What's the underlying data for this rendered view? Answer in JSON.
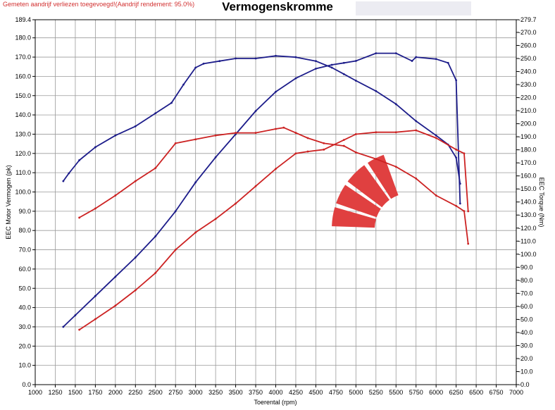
{
  "header": {
    "note": "Gemeten aandrijf verliezen toegevoegd!(Aandrijf rendement: 95.0%)",
    "title": "Vermogenskromme"
  },
  "colors": {
    "power_run": "#1c1c8a",
    "torque_run": "#cc2222",
    "logo": "#e04040"
  },
  "logo": {
    "icon": "tachometer-logo-icon"
  },
  "chart_data": {
    "type": "line",
    "title": "Vermogenskromme",
    "xlabel": "Toerental (rpm)",
    "ylabel": "EEC Motor Vermogen (pk)",
    "y2label": "EEC Torque (Nm)",
    "xlim": [
      1000,
      7000
    ],
    "ylim": [
      0,
      189.4
    ],
    "y2lim": [
      0,
      279.7
    ],
    "grid": true,
    "x_ticks": [
      "1000",
      "1250",
      "1500",
      "1750",
      "2000",
      "2250",
      "2500",
      "2750",
      "3000",
      "3250",
      "3500",
      "3750",
      "4000",
      "4250",
      "4500",
      "4750",
      "5000",
      "5250",
      "5500",
      "5750",
      "6000",
      "6250",
      "6500",
      "6750",
      "7000"
    ],
    "y_ticks": [
      "0.0",
      "10.0",
      "20.0",
      "30.0",
      "40.0",
      "50.0",
      "60.0",
      "70.0",
      "80.0",
      "90.0",
      "100.0",
      "110.0",
      "120.0",
      "130.0",
      "140.0",
      "150.0",
      "160.0",
      "170.0",
      "180.0",
      "189.4"
    ],
    "y2_ticks": [
      "0.0",
      "10.0",
      "20.0",
      "30.0",
      "40.0",
      "50.0",
      "60.0",
      "70.0",
      "80.0",
      "90.0",
      "100.0",
      "110.0",
      "120.0",
      "130.0",
      "140.0",
      "150.0",
      "160.0",
      "170.0",
      "180.0",
      "190.0",
      "200.0",
      "210.0",
      "220.0",
      "230.0",
      "240.0",
      "250.0",
      "260.0",
      "270.0",
      "279.7"
    ],
    "series": [
      {
        "axis": "right",
        "color": "#1c1c8a",
        "x": [
          1350,
          1420,
          1550,
          1750,
          2000,
          2250,
          2500,
          2700,
          2850,
          3000,
          3100,
          3300,
          3500,
          3750,
          4000,
          4250,
          4500,
          4700,
          4850,
          5000,
          5250,
          5500,
          5750,
          6000,
          6150,
          6250,
          6300
        ],
        "y": [
          156,
          162,
          172,
          182,
          191,
          198,
          208,
          216,
          230,
          243,
          246,
          248,
          250,
          250,
          252,
          251,
          248,
          243,
          238,
          233,
          225,
          215,
          202,
          191,
          184,
          174,
          154
        ]
      },
      {
        "axis": "left",
        "color": "#1c1c8a",
        "x": [
          1350,
          1500,
          1750,
          2000,
          2250,
          2500,
          2750,
          3000,
          3250,
          3500,
          3750,
          4000,
          4250,
          4500,
          4700,
          4850,
          5000,
          5250,
          5500,
          5700,
          5750,
          6000,
          6150,
          6250,
          6300
        ],
        "y": [
          30,
          36,
          46,
          56,
          66,
          77,
          90,
          105,
          118,
          130,
          142,
          152,
          159,
          164,
          166,
          167,
          168,
          172,
          172,
          168,
          170,
          169,
          167,
          158,
          94
        ]
      },
      {
        "axis": "right",
        "color": "#cc2222",
        "x": [
          1550,
          1750,
          2000,
          2250,
          2500,
          2750,
          3000,
          3250,
          3500,
          3750,
          4000,
          4100,
          4250,
          4400,
          4600,
          4850,
          5000,
          5250,
          5500,
          5750,
          6000,
          6250,
          6350,
          6400
        ],
        "y": [
          128,
          135,
          145,
          156,
          166,
          185,
          188,
          191,
          193,
          193,
          196,
          197,
          193,
          189,
          185,
          183,
          178,
          173,
          167,
          158,
          145,
          137,
          133,
          108
        ]
      },
      {
        "axis": "left",
        "color": "#cc2222",
        "x": [
          1550,
          1750,
          2000,
          2250,
          2500,
          2750,
          3000,
          3250,
          3500,
          3750,
          4000,
          4250,
          4400,
          4600,
          4850,
          5000,
          5250,
          5500,
          5750,
          6000,
          6250,
          6350,
          6400
        ],
        "y": [
          28.5,
          34,
          41,
          49,
          58,
          70,
          79,
          86,
          94,
          103,
          112,
          120,
          121,
          122,
          127,
          130,
          131,
          131,
          132,
          128,
          122,
          120,
          90
        ]
      }
    ]
  }
}
